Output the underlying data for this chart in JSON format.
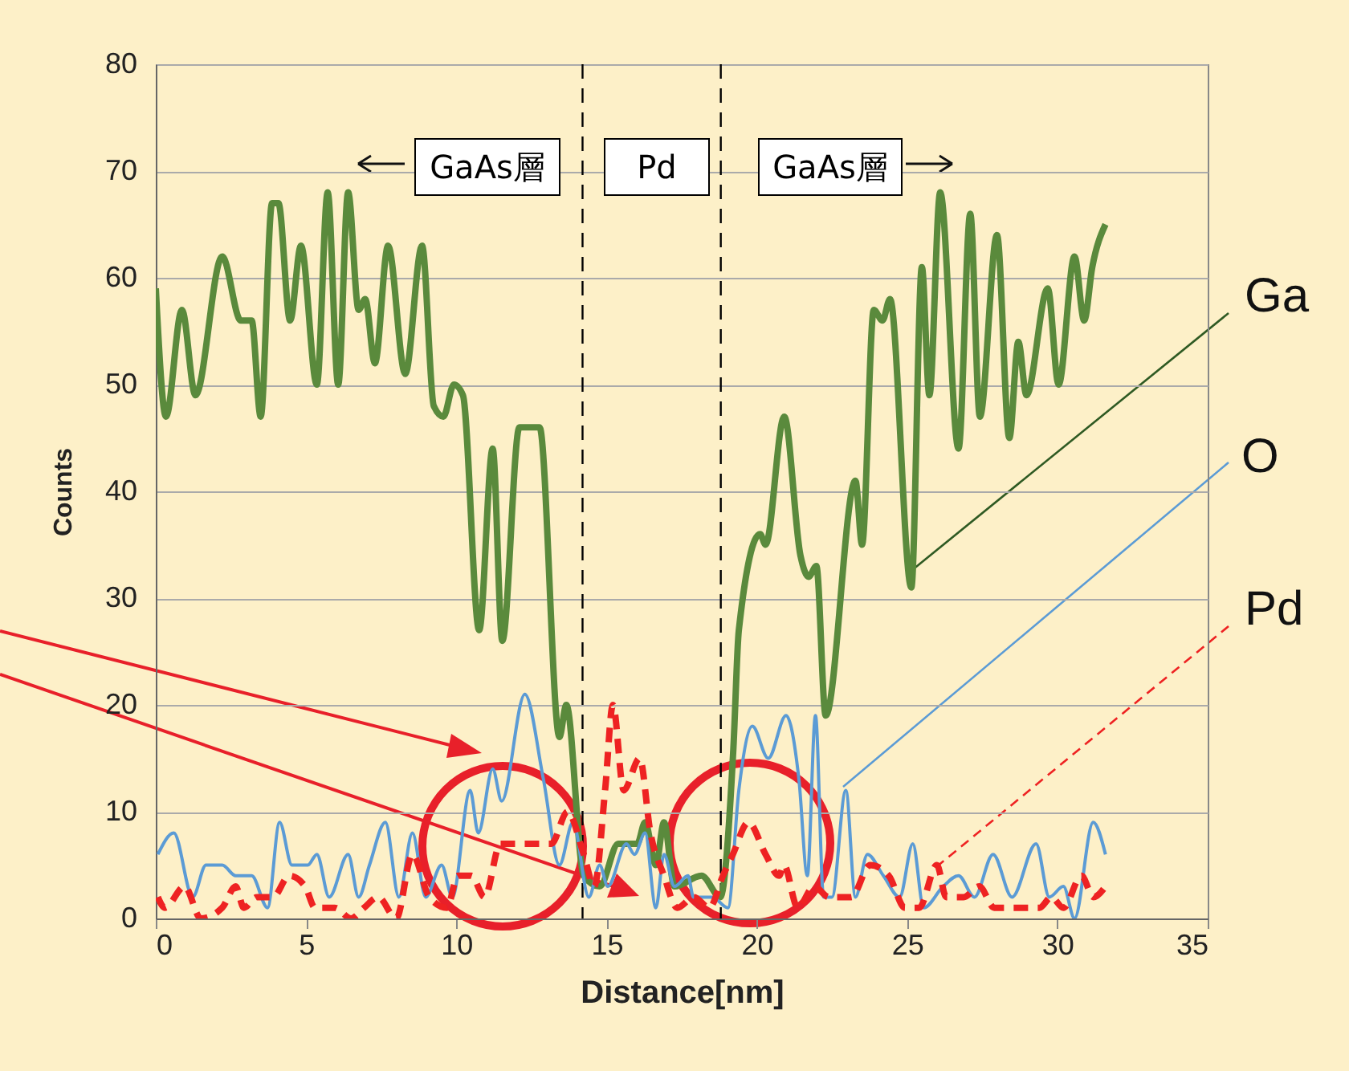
{
  "chart_data": {
    "type": "line",
    "xlabel": "Distance[nm]",
    "ylabel": "Counts",
    "xlim": [
      0,
      35
    ],
    "xticks": [
      0,
      5,
      10,
      15,
      20,
      25,
      30,
      35
    ],
    "ylim": [
      0,
      80
    ],
    "yticks": [
      0,
      10,
      20,
      30,
      40,
      50,
      60,
      70,
      80
    ],
    "grid": "y",
    "legend": false,
    "annotations": [
      "GaAs層",
      "Pd",
      "GaAs層"
    ],
    "ref_lines": [
      {
        "axis": "x",
        "value": 14.2,
        "color": "#000000",
        "line_style": "dashed"
      },
      {
        "axis": "x",
        "value": 18.8,
        "color": "#000000",
        "line_style": "dashed"
      }
    ],
    "series": [
      {
        "name": "Ga",
        "color": "#5a8a3c",
        "x": [
          0,
          0.34,
          0.87,
          1.32,
          2.21,
          2.83,
          3.19,
          3.49,
          3.87,
          4.08,
          4.47,
          4.83,
          5.36,
          5.72,
          6.07,
          6.4,
          6.75,
          6.97,
          7.29,
          7.73,
          8.3,
          8.86,
          9.25,
          9.57,
          9.92,
          10.22,
          10.76,
          11.21,
          11.53,
          12.1,
          12.77,
          13.43,
          13.66,
          14.24,
          14.77,
          15.39,
          16.02,
          16.28,
          16.64,
          16.91,
          17.26,
          18.16,
          18.78,
          19.22,
          19.4,
          20.11,
          20.29,
          20.91,
          21.45,
          21.72,
          21.98,
          22.29,
          23.28,
          23.5,
          23.89,
          24.18,
          24.43,
          25.14,
          25.49,
          25.74,
          26.1,
          26.71,
          27.1,
          27.42,
          27.99,
          28.4,
          28.7,
          28.97,
          29.68,
          30.04,
          30.57,
          30.89,
          31.16,
          31.6
        ],
        "values": [
          59,
          47,
          57,
          49,
          62,
          56,
          56,
          47,
          67,
          67,
          56,
          63,
          50,
          68,
          50,
          68,
          57,
          58,
          52,
          63,
          51,
          63,
          48,
          47,
          50,
          49,
          27,
          44,
          26,
          46,
          46,
          17,
          20,
          4,
          3,
          7,
          7,
          9,
          5,
          9,
          3,
          4,
          2,
          16,
          27,
          36,
          35,
          47,
          34,
          32,
          33,
          19,
          41,
          35,
          57,
          56,
          58,
          31,
          61,
          49,
          68,
          44,
          66,
          47,
          64,
          45,
          54,
          49,
          59,
          50,
          62,
          56,
          61,
          65
        ]
      },
      {
        "name": "O",
        "color": "#5b9bd5",
        "x": [
          0.07,
          0.6,
          1.23,
          1.67,
          2.21,
          2.66,
          3.19,
          3.72,
          4.12,
          4.53,
          5.06,
          5.36,
          5.77,
          6.4,
          6.75,
          7.11,
          7.64,
          8.09,
          8.54,
          8.98,
          9.51,
          9.87,
          10.46,
          10.73,
          11.21,
          11.51,
          12.28,
          12.9,
          13.43,
          13.88,
          14.41,
          14.77,
          15.04,
          15.66,
          15.93,
          16.28,
          16.64,
          16.91,
          17.26,
          17.71,
          17.89,
          18.51,
          19.04,
          19.4,
          19.85,
          20.38,
          20.97,
          21.4,
          21.68,
          21.95,
          22.22,
          22.5,
          22.96,
          23.28,
          23.68,
          24.21,
          24.75,
          25.19,
          25.55,
          26.2,
          26.71,
          27.24,
          27.86,
          28.49,
          29.29,
          29.73,
          30.2,
          30.57,
          31.19,
          31.6
        ],
        "values": [
          6,
          8,
          2,
          5,
          5,
          4,
          4,
          1,
          9,
          5,
          5,
          6,
          2,
          6,
          2,
          5,
          9,
          2,
          8,
          2,
          5,
          2,
          12,
          8,
          14,
          11,
          21,
          13,
          5,
          9,
          2,
          5,
          3,
          7,
          6,
          8,
          1,
          6,
          3,
          4,
          2,
          2,
          1,
          12,
          18,
          15,
          19,
          13,
          4,
          19,
          2,
          2,
          12,
          2,
          6,
          4,
          2,
          7,
          1,
          3,
          4,
          2,
          6,
          2,
          7,
          2,
          3,
          0,
          9,
          6
        ]
      },
      {
        "name": "Pd",
        "color": "#ee2222",
        "line_style": "dashed",
        "x": [
          0.07,
          0.3,
          0.96,
          1.5,
          2.21,
          2.66,
          2.93,
          3.37,
          3.9,
          4.44,
          4.97,
          5.3,
          5.95,
          6.5,
          6.93,
          7.4,
          8,
          8.54,
          9.1,
          9.69,
          10.05,
          10.5,
          10.94,
          11.47,
          12,
          12.63,
          13.16,
          13.7,
          14.24,
          14.59,
          14.95,
          15.21,
          15.57,
          16.1,
          16.46,
          16.91,
          17.35,
          17.9,
          18.42,
          18.87,
          19.2,
          19.72,
          20.29,
          20.74,
          20.9,
          21.36,
          21.9,
          22.4,
          23.14,
          23.77,
          24.39,
          24.93,
          25.4,
          25.99,
          26.3,
          26.88,
          27.4,
          27.9,
          28.84,
          29.4,
          29.8,
          30.2,
          30.8,
          31.2,
          31.6
        ],
        "values": [
          2,
          1,
          3,
          0,
          1,
          3,
          1,
          2,
          2,
          4,
          3,
          1,
          1,
          0,
          1,
          2,
          0,
          6,
          2,
          1,
          4,
          4,
          2,
          7,
          7,
          7,
          7,
          10,
          6,
          3,
          12,
          20,
          12,
          15,
          8,
          4,
          1,
          2,
          1,
          4,
          6,
          9,
          6,
          4,
          5,
          1,
          3,
          2,
          2,
          5,
          4,
          1,
          1,
          5,
          2,
          2,
          3,
          1,
          1,
          1,
          2,
          1,
          4,
          2,
          3
        ]
      }
    ]
  }
}
